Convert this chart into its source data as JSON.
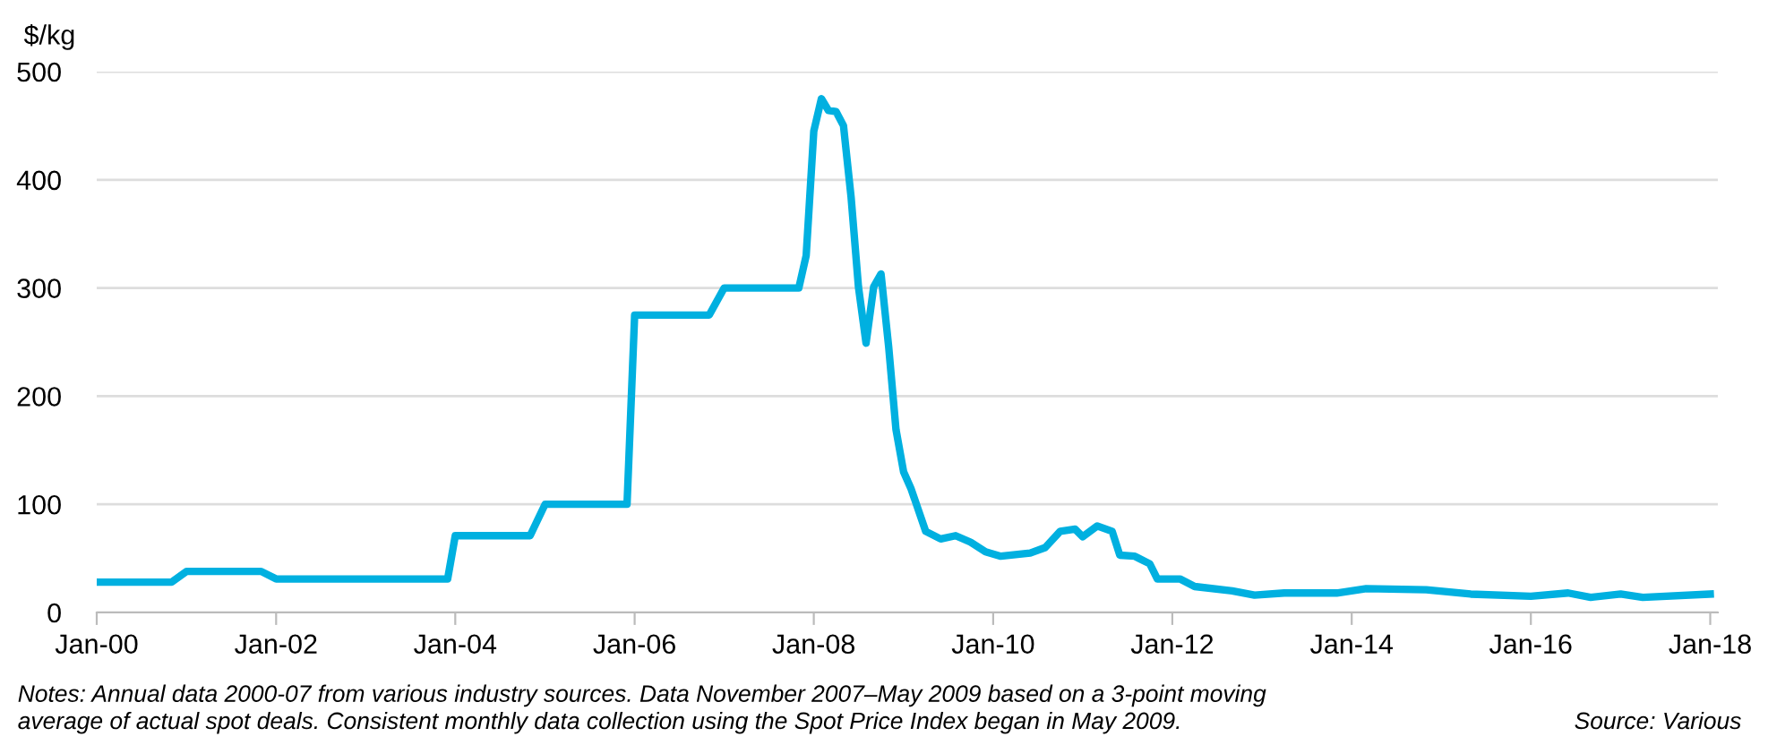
{
  "chart_data": {
    "type": "line",
    "ylabel": "$/kg",
    "x": [
      "2000-01",
      "2000-11",
      "2001-01",
      "2001-11",
      "2002-01",
      "2003-12",
      "2004-01",
      "2004-11",
      "2005-01",
      "2005-12",
      "2006-01",
      "2006-11",
      "2007-01",
      "2007-11",
      "2007-12",
      "2008-01",
      "2008-02",
      "2008-03",
      "2008-04",
      "2008-05",
      "2008-06",
      "2008-07",
      "2008-08",
      "2008-09",
      "2008-10",
      "2008-11",
      "2008-12",
      "2009-01",
      "2009-02",
      "2009-04",
      "2009-06",
      "2009-08",
      "2009-10",
      "2009-12",
      "2010-02",
      "2010-06",
      "2010-08",
      "2010-10",
      "2010-12",
      "2011-01",
      "2011-03",
      "2011-05",
      "2011-06",
      "2011-08",
      "2011-10",
      "2011-11",
      "2012-02",
      "2012-04",
      "2012-09",
      "2012-12",
      "2013-04",
      "2013-11",
      "2014-03",
      "2014-11",
      "2015-05",
      "2016-01",
      "2016-06",
      "2016-09",
      "2017-01",
      "2017-04",
      "2018-01"
    ],
    "series": [
      {
        "color": "#00b0e0",
        "values": [
          28,
          28,
          38,
          38,
          31,
          31,
          71,
          71,
          100,
          100,
          275,
          275,
          300,
          300,
          330,
          445,
          475,
          464,
          463,
          450,
          384,
          301,
          249,
          301,
          313,
          246,
          169,
          130,
          114,
          75,
          68,
          71,
          65,
          56,
          52,
          55,
          60,
          75,
          77,
          70,
          80,
          75,
          53,
          52,
          45,
          31,
          31,
          24,
          20,
          16,
          18,
          18,
          22,
          21,
          17,
          15,
          18,
          14,
          17,
          14,
          17
        ]
      }
    ],
    "xlim": [
      "2000-01-01",
      "2018-02-01"
    ],
    "xticks": [
      {
        "value": "2000-01-01",
        "label": "Jan-00"
      },
      {
        "value": "2002-01-01",
        "label": "Jan-02"
      },
      {
        "value": "2004-01-01",
        "label": "Jan-04"
      },
      {
        "value": "2006-01-01",
        "label": "Jan-06"
      },
      {
        "value": "2008-01-01",
        "label": "Jan-08"
      },
      {
        "value": "2010-01-01",
        "label": "Jan-10"
      },
      {
        "value": "2012-01-01",
        "label": "Jan-12"
      },
      {
        "value": "2014-01-01",
        "label": "Jan-14"
      },
      {
        "value": "2016-01-01",
        "label": "Jan-16"
      },
      {
        "value": "2018-01-01",
        "label": "Jan-18"
      }
    ],
    "ylim": [
      0,
      500
    ],
    "yticks": [
      0,
      100,
      200,
      300,
      400,
      500
    ],
    "grid": "y",
    "annotations": [
      "Notes: Annual data 2000-07 from various industry sources. Data November 2007–May 2009 based on a 3-point moving\naverage of actual spot deals. Consistent monthly data collection using the Spot Price Index began in May 2009.",
      "Source: Various"
    ]
  }
}
